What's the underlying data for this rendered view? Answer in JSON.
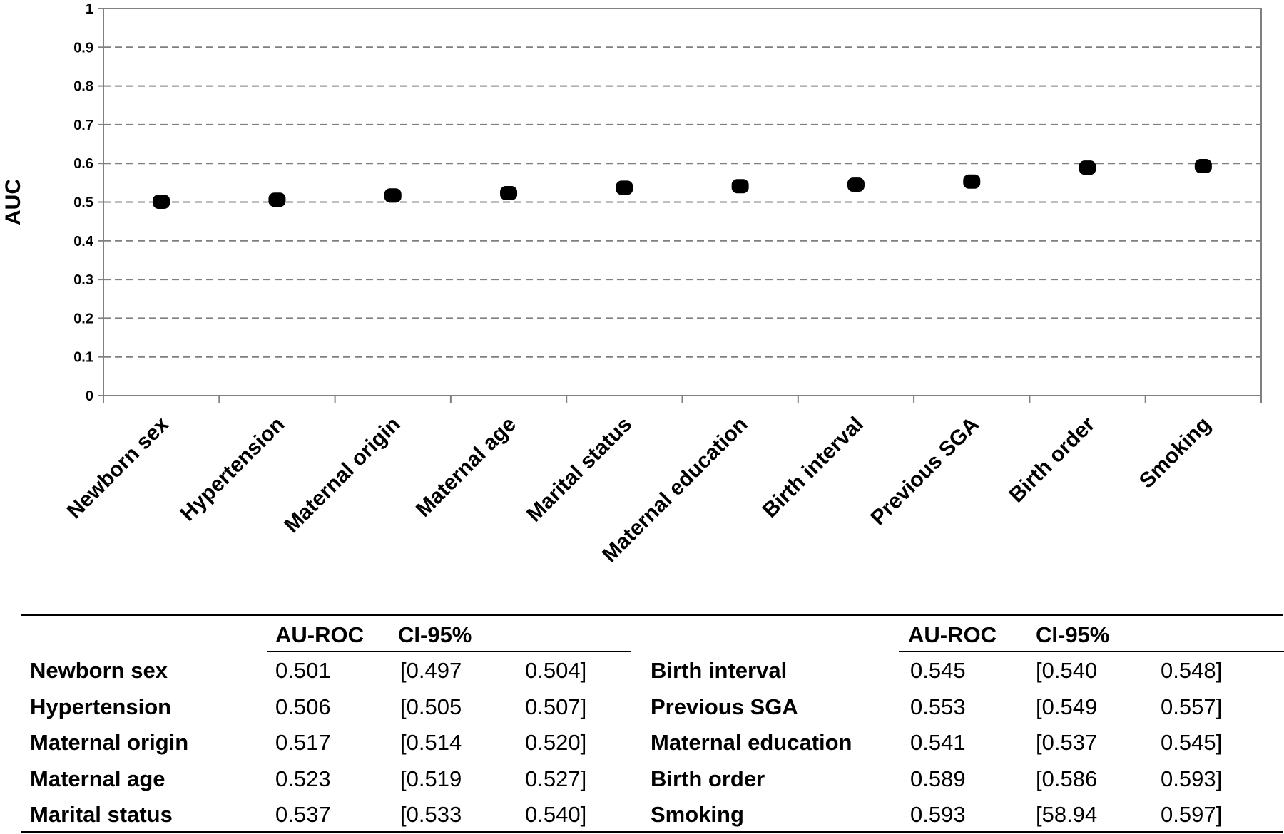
{
  "chart_data": {
    "type": "scatter",
    "title": "",
    "xlabel": "",
    "ylabel": "AUC",
    "ylim": [
      0,
      1
    ],
    "yticks": [
      "0",
      "0.1",
      "0.2",
      "0.3",
      "0.4",
      "0.5",
      "0.6",
      "0.7",
      "0.8",
      "0.9",
      "1"
    ],
    "grid": "horizontal dashed",
    "categories": [
      "Newborn sex",
      "Hypertension",
      "Maternal origin",
      "Maternal age",
      "Marital status",
      "Maternal education",
      "Birth interval",
      "Previous SGA",
      "Birth order",
      "Smoking"
    ],
    "values": [
      0.501,
      0.506,
      0.517,
      0.523,
      0.537,
      0.541,
      0.545,
      0.553,
      0.589,
      0.593
    ],
    "marker_color": "#000000",
    "gridline_color": "#7f7f7f"
  },
  "table": {
    "headers": {
      "left_auroc": "AU-ROC",
      "left_ci": "CI-95%",
      "right_auroc": "AU-ROC",
      "right_ci": "CI-95%"
    },
    "left_rows": [
      {
        "label": "Newborn sex",
        "auroc": "0.501",
        "ci_low": "[0.497",
        "ci_high": "0.504]"
      },
      {
        "label": "Hypertension",
        "auroc": "0.506",
        "ci_low": "[0.505",
        "ci_high": "0.507]"
      },
      {
        "label": "Maternal origin",
        "auroc": "0.517",
        "ci_low": "[0.514",
        "ci_high": "0.520]"
      },
      {
        "label": "Maternal age",
        "auroc": "0.523",
        "ci_low": "[0.519",
        "ci_high": "0.527]"
      },
      {
        "label": "Marital status",
        "auroc": "0.537",
        "ci_low": "[0.533",
        "ci_high": "0.540]"
      }
    ],
    "right_rows": [
      {
        "label": "Birth interval",
        "auroc": "0.545",
        "ci_low": "[0.540",
        "ci_high": "0.548]"
      },
      {
        "label": "Previous SGA",
        "auroc": "0.553",
        "ci_low": "[0.549",
        "ci_high": "0.557]"
      },
      {
        "label": "Maternal education",
        "auroc": "0.541",
        "ci_low": "[0.537",
        "ci_high": "0.545]"
      },
      {
        "label": "Birth order",
        "auroc": "0.589",
        "ci_low": "[0.586",
        "ci_high": "0.593]"
      },
      {
        "label": "Smoking",
        "auroc": "0.593",
        "ci_low": "[58.94",
        "ci_high": "0.597]"
      }
    ]
  }
}
